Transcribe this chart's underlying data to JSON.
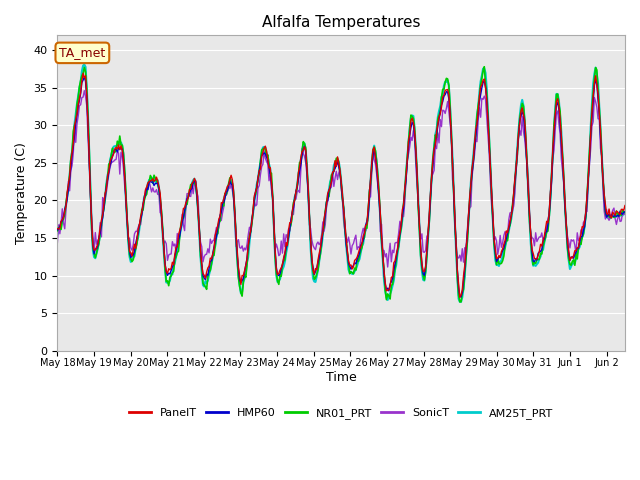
{
  "title": "Alfalfa Temperatures",
  "xlabel": "Time",
  "ylabel": "Temperature (C)",
  "annotation": "TA_met",
  "ylim": [
    0,
    42
  ],
  "yticks": [
    0,
    5,
    10,
    15,
    20,
    25,
    30,
    35,
    40
  ],
  "plot_bg": "#e8e8e8",
  "fig_bg": "#ffffff",
  "grid_color": "#ffffff",
  "series_colors": {
    "PanelT": "#dd0000",
    "HMP60": "#0000cc",
    "NR01_PRT": "#00cc00",
    "SonicT": "#9933cc",
    "AM25T_PRT": "#00cccc"
  },
  "series_lw": {
    "PanelT": 1.0,
    "HMP60": 1.0,
    "NR01_PRT": 1.2,
    "SonicT": 1.0,
    "AM25T_PRT": 1.5
  },
  "xtick_positions": [
    0,
    1,
    2,
    3,
    4,
    5,
    6,
    7,
    8,
    9,
    10,
    11,
    12,
    13,
    14,
    15
  ],
  "xtick_labels": [
    "May 18",
    "May 19",
    "May 20",
    "May 21",
    "May 22",
    "May 23",
    "May 24",
    "May 25",
    "May 26",
    "May 27",
    "May 28",
    "May 29",
    "May 30",
    "May 31",
    "Jun 1",
    "Jun 2"
  ],
  "annotation_color": "#880000",
  "annotation_bg": "#ffffcc",
  "annotation_edge": "#cc6600"
}
